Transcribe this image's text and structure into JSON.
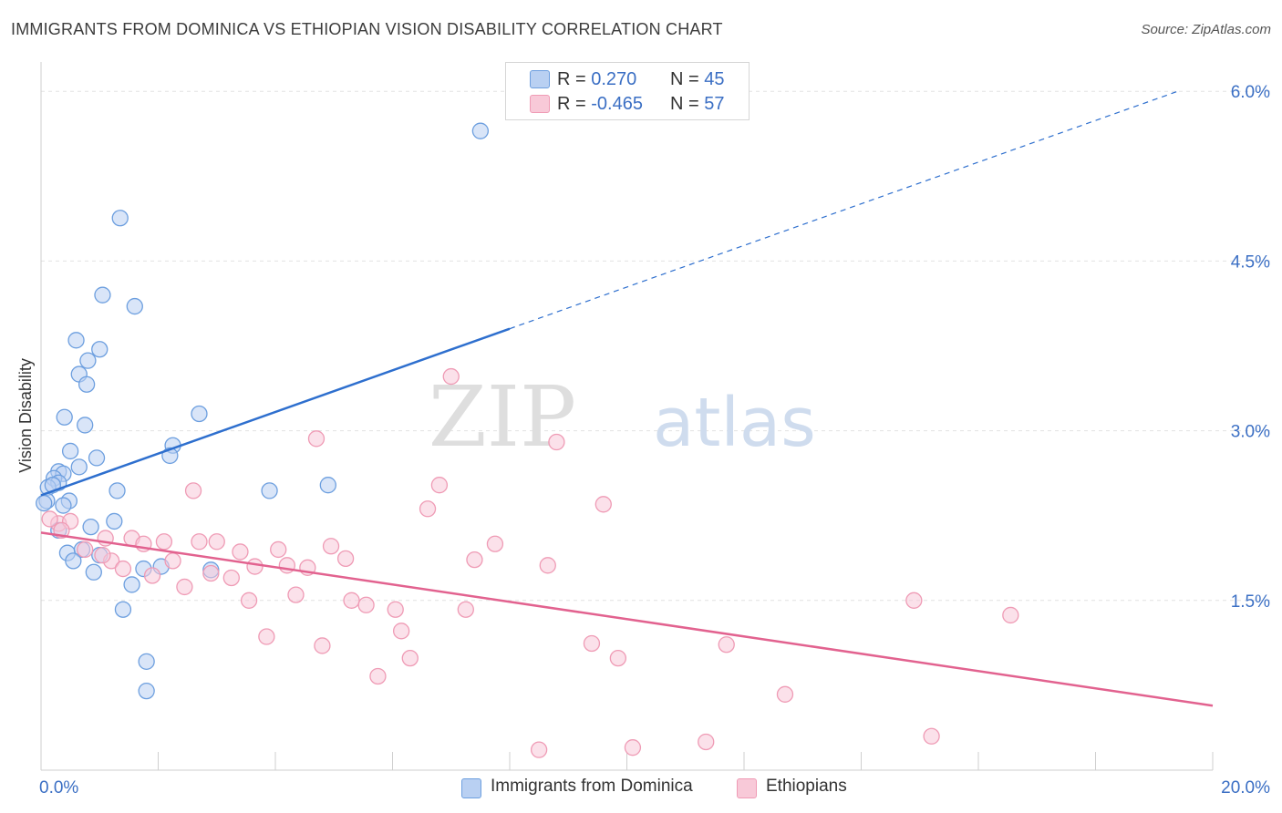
{
  "title": "IMMIGRANTS FROM DOMINICA VS ETHIOPIAN VISION DISABILITY CORRELATION CHART",
  "source": "Source: ZipAtlas.com",
  "watermark": {
    "part1": "ZIP",
    "part2": "atlas"
  },
  "legend_top": {
    "rows": [
      {
        "r_label": "R = ",
        "r_value": "0.270",
        "n_label": "N = ",
        "n_value": "45"
      },
      {
        "r_label": "R = ",
        "r_value": "-0.465",
        "n_label": "N = ",
        "n_value": "57"
      }
    ]
  },
  "legend_bottom": [
    "Immigrants from Dominica",
    "Ethiopians"
  ],
  "chart_data": {
    "type": "scatter",
    "ylabel": "Vision Disability",
    "xlabel": "",
    "xlim": [
      0,
      20
    ],
    "ylim": [
      0,
      6.3
    ],
    "x_ticks": [
      {
        "value": 0,
        "label": "0.0%"
      },
      {
        "value": 20,
        "label": "20.0%"
      }
    ],
    "y_ticks": [
      {
        "value": 1.5,
        "label": "1.5%"
      },
      {
        "value": 3.0,
        "label": "3.0%"
      },
      {
        "value": 4.5,
        "label": "4.5%"
      },
      {
        "value": 6.0,
        "label": "6.0%"
      }
    ],
    "grid": true,
    "legend_position": "top-center",
    "series": [
      {
        "name": "Immigrants from Dominica",
        "color": "#6d9fdf",
        "fill": "#b9d0f2",
        "line_color": "#2e6fce",
        "trend": {
          "x0": 0,
          "y0": 2.43,
          "x_solid_end": 8.0,
          "x1": 19.4,
          "y1": 6.0
        },
        "points": [
          [
            7.5,
            5.65
          ],
          [
            1.35,
            4.88
          ],
          [
            1.05,
            4.2
          ],
          [
            1.6,
            4.1
          ],
          [
            0.6,
            3.8
          ],
          [
            1.0,
            3.72
          ],
          [
            0.8,
            3.62
          ],
          [
            0.65,
            3.5
          ],
          [
            0.78,
            3.41
          ],
          [
            0.4,
            3.12
          ],
          [
            2.7,
            3.15
          ],
          [
            0.75,
            3.05
          ],
          [
            2.25,
            2.87
          ],
          [
            0.5,
            2.82
          ],
          [
            2.2,
            2.78
          ],
          [
            0.95,
            2.76
          ],
          [
            0.65,
            2.68
          ],
          [
            0.3,
            2.64
          ],
          [
            0.38,
            2.62
          ],
          [
            0.22,
            2.58
          ],
          [
            0.3,
            2.54
          ],
          [
            0.12,
            2.5
          ],
          [
            0.2,
            2.52
          ],
          [
            4.9,
            2.52
          ],
          [
            3.9,
            2.47
          ],
          [
            1.3,
            2.47
          ],
          [
            0.1,
            2.38
          ],
          [
            0.05,
            2.36
          ],
          [
            0.48,
            2.38
          ],
          [
            0.38,
            2.34
          ],
          [
            1.25,
            2.2
          ],
          [
            0.3,
            2.12
          ],
          [
            0.85,
            2.15
          ],
          [
            0.45,
            1.92
          ],
          [
            0.7,
            1.95
          ],
          [
            0.55,
            1.85
          ],
          [
            1.0,
            1.9
          ],
          [
            0.9,
            1.75
          ],
          [
            2.05,
            1.8
          ],
          [
            1.75,
            1.78
          ],
          [
            2.9,
            1.77
          ],
          [
            1.55,
            1.64
          ],
          [
            1.4,
            1.42
          ],
          [
            1.8,
            0.96
          ],
          [
            1.8,
            0.7
          ]
        ]
      },
      {
        "name": "Ethiopians",
        "color": "#ef9bb5",
        "fill": "#f8c9d8",
        "line_color": "#e2628f",
        "trend": {
          "x0": 0,
          "y0": 2.1,
          "x1": 20.0,
          "y1": 0.57
        },
        "points": [
          [
            7.0,
            3.48
          ],
          [
            4.7,
            2.93
          ],
          [
            8.8,
            2.9
          ],
          [
            6.8,
            2.52
          ],
          [
            2.6,
            2.47
          ],
          [
            9.6,
            2.35
          ],
          [
            6.6,
            2.31
          ],
          [
            0.3,
            2.18
          ],
          [
            0.15,
            2.22
          ],
          [
            0.5,
            2.2
          ],
          [
            0.35,
            2.12
          ],
          [
            1.1,
            2.05
          ],
          [
            1.55,
            2.05
          ],
          [
            2.1,
            2.02
          ],
          [
            3.0,
            2.02
          ],
          [
            2.7,
            2.02
          ],
          [
            1.75,
            2.0
          ],
          [
            7.75,
            2.0
          ],
          [
            4.95,
            1.98
          ],
          [
            0.75,
            1.95
          ],
          [
            4.05,
            1.95
          ],
          [
            3.4,
            1.93
          ],
          [
            1.2,
            1.85
          ],
          [
            2.25,
            1.85
          ],
          [
            1.05,
            1.9
          ],
          [
            5.2,
            1.87
          ],
          [
            7.4,
            1.86
          ],
          [
            8.65,
            1.81
          ],
          [
            4.2,
            1.81
          ],
          [
            3.65,
            1.8
          ],
          [
            4.55,
            1.79
          ],
          [
            1.4,
            1.78
          ],
          [
            2.9,
            1.74
          ],
          [
            1.9,
            1.72
          ],
          [
            3.25,
            1.7
          ],
          [
            2.45,
            1.62
          ],
          [
            4.35,
            1.55
          ],
          [
            5.3,
            1.5
          ],
          [
            3.55,
            1.5
          ],
          [
            5.55,
            1.46
          ],
          [
            6.05,
            1.42
          ],
          [
            7.25,
            1.42
          ],
          [
            14.9,
            1.5
          ],
          [
            16.55,
            1.37
          ],
          [
            6.15,
            1.23
          ],
          [
            3.85,
            1.18
          ],
          [
            4.8,
            1.1
          ],
          [
            9.4,
            1.12
          ],
          [
            11.7,
            1.11
          ],
          [
            6.3,
            0.99
          ],
          [
            9.85,
            0.99
          ],
          [
            5.75,
            0.83
          ],
          [
            12.7,
            0.67
          ],
          [
            15.2,
            0.3
          ],
          [
            11.35,
            0.25
          ],
          [
            10.1,
            0.2
          ],
          [
            8.5,
            0.18
          ]
        ]
      }
    ]
  }
}
